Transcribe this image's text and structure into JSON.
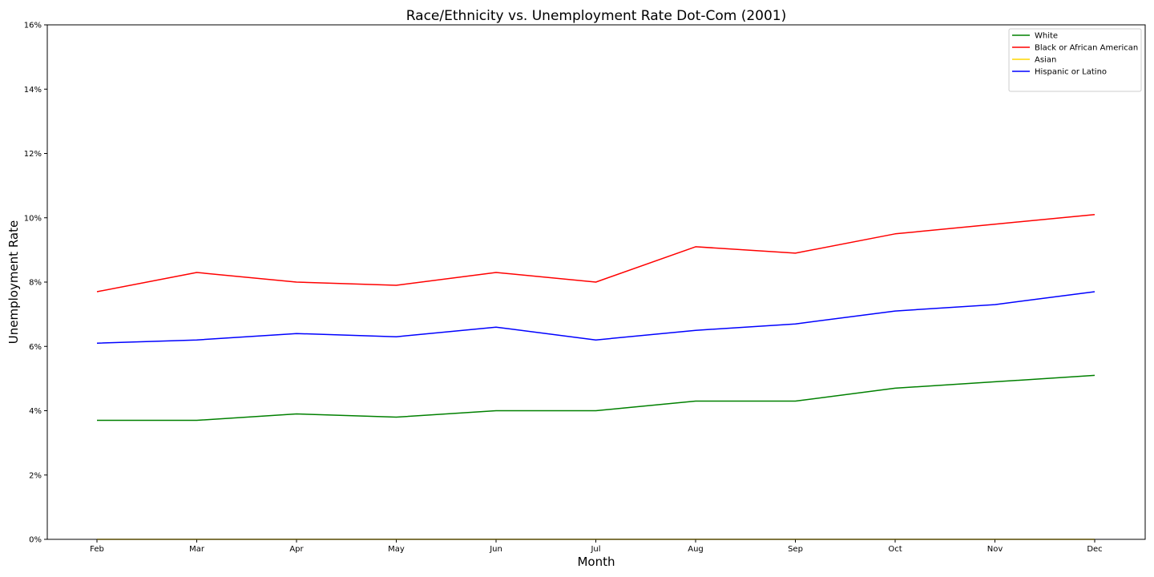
{
  "chart_data": {
    "type": "line",
    "title": "Race/Ethnicity vs. Unemployment Rate Dot-Com (2001)",
    "xlabel": "Month",
    "ylabel": "Unemployment Rate",
    "categories": [
      "Feb",
      "Mar",
      "Apr",
      "May",
      "Jun",
      "Jul",
      "Aug",
      "Sep",
      "Oct",
      "Nov",
      "Dec"
    ],
    "ylim": [
      0,
      16
    ],
    "yticks": [
      0,
      2,
      4,
      6,
      8,
      10,
      12,
      14,
      16
    ],
    "ytick_suffix": "%",
    "grid": false,
    "legend_position": "top-right",
    "series": [
      {
        "name": "White",
        "color": "#008000",
        "values": [
          3.7,
          3.7,
          3.9,
          3.8,
          4.0,
          4.0,
          4.3,
          4.3,
          4.7,
          4.9,
          5.1
        ]
      },
      {
        "name": "Black or African American",
        "color": "#ff0000",
        "values": [
          7.7,
          8.3,
          8.0,
          7.9,
          8.3,
          8.0,
          9.1,
          8.9,
          9.5,
          9.8,
          10.1
        ]
      },
      {
        "name": "Asian",
        "color": "#ffd700",
        "values": [
          0,
          0,
          0,
          0,
          0,
          0,
          0,
          0,
          0,
          0,
          0
        ]
      },
      {
        "name": "Hispanic or Latino",
        "color": "#0000ff",
        "values": [
          6.1,
          6.2,
          6.4,
          6.3,
          6.6,
          6.2,
          6.5,
          6.7,
          7.1,
          7.3,
          7.7
        ]
      }
    ]
  }
}
